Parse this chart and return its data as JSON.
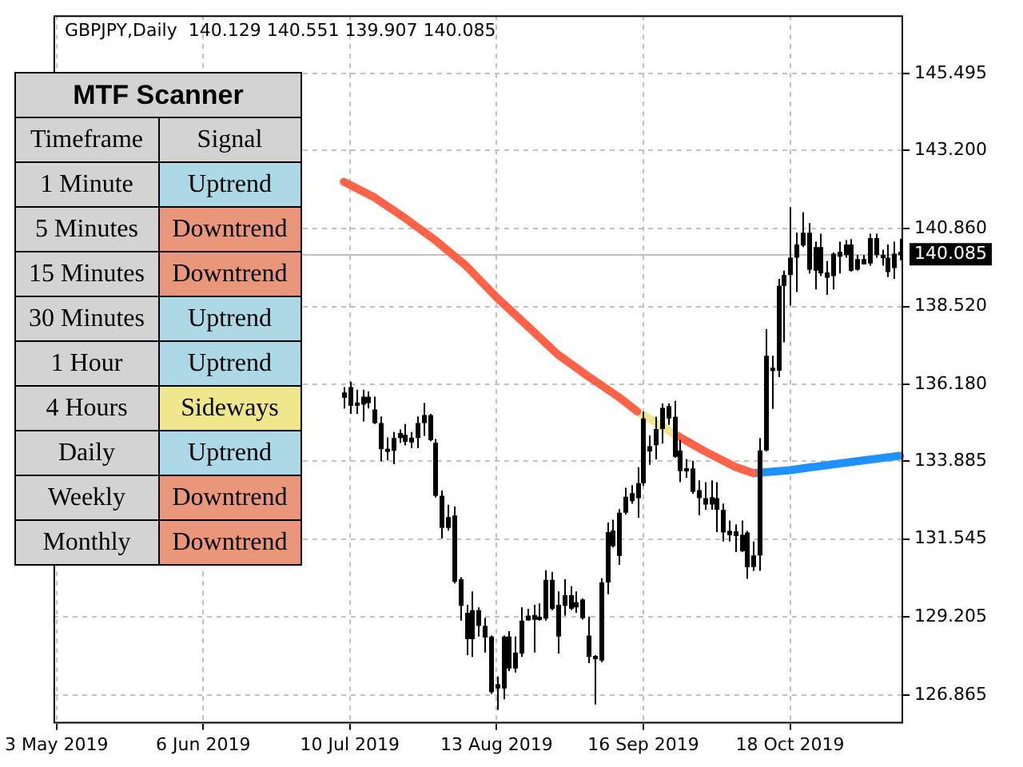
{
  "chart_data": [
    {
      "type": "candlestick",
      "title": "GBPJPY,Daily  140.129 140.551 139.907 140.085",
      "categories": [
        "3 May 2019",
        null,
        null,
        null,
        null,
        null,
        null,
        null,
        null,
        null,
        null,
        null,
        null,
        null,
        null,
        null,
        null,
        null,
        null,
        null,
        null,
        null,
        null,
        null,
        "6 Jun 2019",
        null,
        null,
        null,
        null,
        null,
        null,
        null,
        null,
        null,
        null,
        null,
        null,
        null,
        null,
        null,
        null,
        null,
        null,
        null,
        null,
        null,
        null,
        null,
        "10 Jul 2019",
        null,
        null,
        null,
        null,
        null,
        null,
        null,
        null,
        null,
        null,
        null,
        null,
        null,
        null,
        null,
        null,
        null,
        null,
        null,
        null,
        null,
        null,
        null,
        "13 Aug 2019",
        null,
        null,
        null,
        null,
        null,
        null,
        null,
        null,
        null,
        null,
        null,
        null,
        null,
        null,
        null,
        null,
        null,
        null,
        null,
        null,
        null,
        null,
        null,
        "16 Sep 2019",
        null,
        null,
        null,
        null,
        null,
        null,
        null,
        null,
        null,
        null,
        null,
        null,
        null,
        null,
        null,
        null,
        null,
        null,
        null,
        null,
        null,
        null,
        null,
        "18 Oct 2019",
        null,
        null,
        null,
        null,
        null,
        null,
        null,
        null,
        null,
        null,
        null,
        null,
        null,
        null,
        null,
        null,
        null,
        null
      ],
      "ohlc": [
        null,
        null,
        null,
        null,
        null,
        null,
        null,
        null,
        null,
        null,
        null,
        null,
        null,
        null,
        null,
        null,
        null,
        null,
        null,
        null,
        null,
        null,
        null,
        null,
        null,
        null,
        null,
        null,
        null,
        null,
        null,
        null,
        null,
        null,
        null,
        null,
        null,
        null,
        null,
        null,
        null,
        null,
        null,
        null,
        null,
        null,
        null,
        [
          135.94,
          136.1,
          135.46,
          135.78
        ],
        [
          136.1,
          136.26,
          135.3,
          135.54
        ],
        [
          135.59,
          136.02,
          135.3,
          135.59
        ],
        [
          135.58,
          136.02,
          135.07,
          135.81
        ],
        [
          135.81,
          135.97,
          135.46,
          135.62
        ],
        [
          135.43,
          135.81,
          134.99,
          135.02
        ],
        [
          135.02,
          135.22,
          133.87,
          134.24
        ],
        [
          134.25,
          134.59,
          133.9,
          134.16
        ],
        [
          134.19,
          134.75,
          133.79,
          134.57
        ],
        [
          134.57,
          134.83,
          134.43,
          134.72
        ],
        [
          134.67,
          134.99,
          134.35,
          134.46
        ],
        [
          134.46,
          134.75,
          134.27,
          134.57
        ],
        [
          134.57,
          135.22,
          134.27,
          135.02
        ],
        [
          135.02,
          135.62,
          134.64,
          135.26
        ],
        [
          135.26,
          135.3,
          134.48,
          134.51
        ],
        [
          134.43,
          134.54,
          132.79,
          132.84
        ],
        [
          132.84,
          133.0,
          131.56,
          131.88
        ],
        [
          131.88,
          132.57,
          131.8,
          132.2
        ],
        [
          132.25,
          132.52,
          130.21,
          130.26
        ],
        [
          130.34,
          130.4,
          129.1,
          129.54
        ],
        [
          129.33,
          129.57,
          128.06,
          128.54
        ],
        [
          128.54,
          129.97,
          128.01,
          129.41
        ],
        [
          129.41,
          129.49,
          128.62,
          128.94
        ],
        [
          128.94,
          129.18,
          128.14,
          128.59
        ],
        [
          128.62,
          128.65,
          126.9,
          126.95
        ],
        [
          127.19,
          127.42,
          126.42,
          127.06
        ],
        [
          127.06,
          128.65,
          126.74,
          128.62
        ],
        [
          128.62,
          128.78,
          127.58,
          127.66
        ],
        [
          127.66,
          128.62,
          127.54,
          128.14
        ],
        [
          128.11,
          129.49,
          128.01,
          129.1
        ],
        [
          129.13,
          129.45,
          129.1,
          129.22
        ],
        [
          129.19,
          129.57,
          128.14,
          129.2
        ],
        [
          129.17,
          129.61,
          129.1,
          129.16
        ],
        [
          129.16,
          130.61,
          129.1,
          130.32
        ],
        [
          130.32,
          130.56,
          129.41,
          129.45
        ],
        [
          128.62,
          129.97,
          128.11,
          129.57
        ],
        [
          129.54,
          130.34,
          129.25,
          129.86
        ],
        [
          129.86,
          130.13,
          129.41,
          129.45
        ],
        [
          129.49,
          129.97,
          129.33,
          129.65
        ],
        [
          129.73,
          129.76,
          129.13,
          129.17
        ],
        [
          128.65,
          129.22,
          127.82,
          128.01
        ],
        [
          128.0,
          128.06,
          126.58,
          127.98
        ],
        [
          127.9,
          130.37,
          127.85,
          130.24
        ],
        [
          130.24,
          132.04,
          129.89,
          131.75
        ],
        [
          131.8,
          132.12,
          131.29,
          131.33
        ],
        [
          131.04,
          132.44,
          130.77,
          132.33
        ],
        [
          132.33,
          133.08,
          132.28,
          132.81
        ],
        [
          132.68,
          133.16,
          132.6,
          132.92
        ],
        [
          132.77,
          133.7,
          132.18,
          133.22
        ],
        [
          133.22,
          135.37,
          133.14,
          135.16
        ],
        [
          134.17,
          134.65,
          133.77,
          134.33
        ],
        [
          134.36,
          135.21,
          133.93,
          134.84
        ],
        [
          134.84,
          135.61,
          134.41,
          135.48
        ],
        [
          135.53,
          135.61,
          134.97,
          135.16
        ],
        [
          135.21,
          135.69,
          133.98,
          134.01
        ],
        [
          134.2,
          134.52,
          133.25,
          133.58
        ],
        [
          133.66,
          133.94,
          133.38,
          133.58
        ],
        [
          133.66,
          133.89,
          132.9,
          132.96
        ],
        [
          133.01,
          133.3,
          132.26,
          132.77
        ],
        [
          132.58,
          133.25,
          132.42,
          132.77
        ],
        [
          132.58,
          133.3,
          132.42,
          132.8
        ],
        [
          132.77,
          133.25,
          131.75,
          132.42
        ],
        [
          132.42,
          132.61,
          131.47,
          131.74
        ],
        [
          131.79,
          132.1,
          131.47,
          131.66
        ],
        [
          131.66,
          131.98,
          131.15,
          131.75
        ],
        [
          131.67,
          132.1,
          131.15,
          131.18
        ],
        [
          131.74,
          131.79,
          130.35,
          130.7
        ],
        [
          130.7,
          131.47,
          130.59,
          131.05
        ],
        [
          131.05,
          134.57,
          130.59,
          134.2
        ],
        [
          134.2,
          137.84,
          134.17,
          137.04
        ],
        [
          136.67,
          137.04,
          135.45,
          136.59
        ],
        [
          136.59,
          139.35,
          136.4,
          139.14
        ],
        [
          139.14,
          139.59,
          137.44,
          139.46
        ],
        [
          139.46,
          141.5,
          138.55,
          139.98
        ],
        [
          139.98,
          140.73,
          138.95,
          140.38
        ],
        [
          140.35,
          141.34,
          140.3,
          140.73
        ],
        [
          140.73,
          141.02,
          139.51,
          139.62
        ],
        [
          139.59,
          140.46,
          139.03,
          140.3
        ],
        [
          140.3,
          140.7,
          139.43,
          139.51
        ],
        [
          139.54,
          139.88,
          138.87,
          139.38
        ],
        [
          139.43,
          140.14,
          139.03,
          140.1
        ],
        [
          140.03,
          140.46,
          139.51,
          140.14
        ],
        [
          140.06,
          140.51,
          139.98,
          140.38
        ],
        [
          140.38,
          140.54,
          139.56,
          139.59
        ],
        [
          139.62,
          140.06,
          139.59,
          139.94
        ],
        [
          139.94,
          140.06,
          139.78,
          139.78
        ],
        [
          139.81,
          140.7,
          139.74,
          140.57
        ],
        [
          140.57,
          140.7,
          139.98,
          140.06
        ],
        [
          140.06,
          140.22,
          139.74,
          139.97
        ],
        [
          139.98,
          140.38,
          139.4,
          139.55
        ],
        [
          139.67,
          140.46,
          139.35,
          140.1
        ],
        [
          140.129,
          140.551,
          139.907,
          140.085
        ]
      ],
      "series": [
        {
          "type": "line",
          "color": "#ff6347",
          "values": [
            null,
            null,
            null,
            null,
            null,
            null,
            null,
            null,
            null,
            null,
            null,
            null,
            null,
            null,
            null,
            null,
            null,
            null,
            null,
            null,
            null,
            null,
            null,
            null,
            null,
            null,
            null,
            null,
            null,
            null,
            null,
            null,
            null,
            null,
            null,
            null,
            null,
            null,
            null,
            null,
            null,
            null,
            null,
            null,
            null,
            null,
            null,
            142.26,
            null,
            null,
            null,
            null,
            141.79,
            null,
            null,
            null,
            null,
            141.17,
            null,
            null,
            null,
            null,
            140.5,
            null,
            null,
            null,
            null,
            139.74,
            null,
            null,
            null,
            null,
            138.79,
            null,
            null,
            null,
            null,
            137.94,
            null,
            null,
            null,
            null,
            137.08,
            null,
            null,
            null,
            null,
            136.42,
            null,
            null,
            null,
            null,
            135.8,
            null,
            null,
            135.37,
            null,
            null,
            null,
            null,
            null,
            null,
            null,
            null,
            null,
            null,
            null,
            null,
            null,
            null,
            null,
            null,
            null,
            null,
            null,
            null,
            null,
            null,
            null,
            null,
            null,
            null,
            null,
            null,
            null,
            null,
            null,
            null,
            null,
            null,
            null,
            null,
            null,
            null,
            null,
            null,
            null,
            null,
            null
          ]
        },
        {
          "type": "line",
          "color": "#f0e68c",
          "values": [
            null,
            null,
            null,
            null,
            null,
            null,
            null,
            null,
            null,
            null,
            null,
            null,
            null,
            null,
            null,
            null,
            null,
            null,
            null,
            null,
            null,
            null,
            null,
            null,
            null,
            null,
            null,
            null,
            null,
            null,
            null,
            null,
            null,
            null,
            null,
            null,
            null,
            null,
            null,
            null,
            null,
            null,
            null,
            null,
            null,
            null,
            null,
            null,
            null,
            null,
            null,
            null,
            null,
            null,
            null,
            null,
            null,
            null,
            null,
            null,
            null,
            null,
            null,
            null,
            null,
            null,
            null,
            null,
            null,
            null,
            null,
            null,
            null,
            null,
            null,
            null,
            null,
            null,
            null,
            null,
            null,
            null,
            null,
            null,
            null,
            null,
            null,
            null,
            null,
            null,
            null,
            null,
            null,
            null,
            null,
            135.37,
            null,
            null,
            135.04,
            null,
            null,
            134.7,
            null,
            null,
            null,
            null,
            null,
            null,
            null,
            null,
            null,
            null,
            null,
            null,
            null,
            null,
            null,
            null,
            null,
            null,
            null,
            null,
            null,
            null,
            null,
            null,
            null,
            null,
            null,
            null,
            null,
            null,
            null,
            null,
            null,
            null,
            null,
            null,
            null
          ]
        },
        {
          "type": "line",
          "color": "#ff6347",
          "values": [
            null,
            null,
            null,
            null,
            null,
            null,
            null,
            null,
            null,
            null,
            null,
            null,
            null,
            null,
            null,
            null,
            null,
            null,
            null,
            null,
            null,
            null,
            null,
            null,
            null,
            null,
            null,
            null,
            null,
            null,
            null,
            null,
            null,
            null,
            null,
            null,
            null,
            null,
            null,
            null,
            null,
            null,
            null,
            null,
            null,
            null,
            null,
            null,
            null,
            null,
            null,
            null,
            null,
            null,
            null,
            null,
            null,
            null,
            null,
            null,
            null,
            null,
            null,
            null,
            null,
            null,
            null,
            null,
            null,
            null,
            null,
            null,
            null,
            null,
            null,
            null,
            null,
            null,
            null,
            null,
            null,
            null,
            null,
            null,
            null,
            null,
            null,
            null,
            null,
            null,
            null,
            null,
            null,
            null,
            null,
            null,
            null,
            null,
            null,
            null,
            null,
            134.7,
            null,
            null,
            null,
            null,
            134.18,
            null,
            null,
            null,
            null,
            133.71,
            null,
            null,
            133.52,
            null,
            null,
            null,
            null,
            null,
            null,
            null,
            null,
            null,
            null,
            null,
            null,
            null,
            null,
            null,
            null,
            null,
            null,
            null,
            null,
            null,
            null,
            null,
            null
          ]
        },
        {
          "type": "line",
          "color": "#1e90ff",
          "values": [
            null,
            null,
            null,
            null,
            null,
            null,
            null,
            null,
            null,
            null,
            null,
            null,
            null,
            null,
            null,
            null,
            null,
            null,
            null,
            null,
            null,
            null,
            null,
            null,
            null,
            null,
            null,
            null,
            null,
            null,
            null,
            null,
            null,
            null,
            null,
            null,
            null,
            null,
            null,
            null,
            null,
            null,
            null,
            null,
            null,
            null,
            null,
            null,
            null,
            null,
            null,
            null,
            null,
            null,
            null,
            null,
            null,
            null,
            null,
            null,
            null,
            null,
            null,
            null,
            null,
            null,
            null,
            null,
            null,
            null,
            null,
            null,
            null,
            null,
            null,
            null,
            null,
            null,
            null,
            null,
            null,
            null,
            null,
            null,
            null,
            null,
            null,
            null,
            null,
            null,
            null,
            null,
            null,
            null,
            null,
            null,
            null,
            null,
            null,
            null,
            null,
            null,
            null,
            null,
            null,
            null,
            null,
            null,
            null,
            null,
            null,
            null,
            null,
            null,
            133.52,
            null,
            null,
            null,
            null,
            null,
            133.61,
            null,
            null,
            null,
            null,
            null,
            133.76,
            null,
            null,
            null,
            null,
            null,
            133.9,
            null,
            null,
            null,
            null,
            null,
            134.04
          ]
        }
      ],
      "ylim": [
        126.01,
        147.25
      ],
      "yticks": [
        145.495,
        {
          "value": 143.2,
          "label": "143.200"
        },
        {
          "value": 140.86,
          "label": "140.860"
        },
        {
          "value": 138.52,
          "label": "138.520"
        },
        {
          "value": 136.18,
          "label": "136.180"
        },
        133.885,
        131.545,
        129.205,
        126.865
      ],
      "ref_lines": [
        {
          "axis": "y",
          "value": 140.085,
          "label": "140.085",
          "color": "#c0c0c0"
        }
      ],
      "grid": true
    },
    {
      "type": "other",
      "title": "MTF Scanner",
      "annotations": [
        "Timeframe",
        "Signal",
        "1 Minute",
        "Uptrend",
        "5 Minutes",
        "Downtrend",
        "15 Minutes",
        "Downtrend",
        "30 Minutes",
        "Uptrend",
        "1 Hour",
        "Uptrend",
        "4 Hours",
        "Sideways",
        "Daily",
        "Uptrend",
        "Weekly",
        "Downtrend",
        "Monthly",
        "Downtrend"
      ],
      "colors": [
        "#d3d3d3",
        "#add8e6",
        "#e9967a",
        "#e9967a",
        "#add8e6",
        "#add8e6",
        "#f0e68c",
        "#add8e6",
        "#e9967a",
        "#e9967a"
      ]
    }
  ]
}
